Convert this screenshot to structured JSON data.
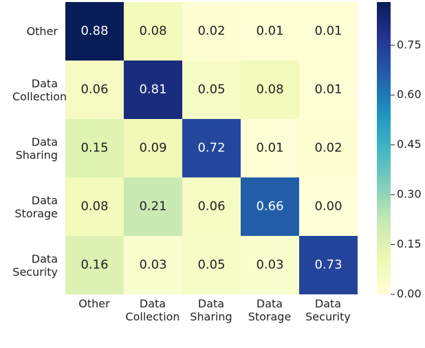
{
  "chart_data": {
    "type": "heatmap",
    "x_categories": [
      "Other",
      "Data Collection",
      "Data Sharing",
      "Data Storage",
      "Data Security"
    ],
    "y_categories": [
      "Other",
      "Data Collection",
      "Data Sharing",
      "Data Storage",
      "Data Security"
    ],
    "values": [
      [
        0.88,
        0.08,
        0.02,
        0.01,
        0.01
      ],
      [
        0.06,
        0.81,
        0.05,
        0.08,
        0.01
      ],
      [
        0.15,
        0.09,
        0.72,
        0.01,
        0.02
      ],
      [
        0.08,
        0.21,
        0.06,
        0.66,
        0.0
      ],
      [
        0.16,
        0.03,
        0.05,
        0.03,
        0.73
      ]
    ],
    "value_labels": [
      [
        "0.88",
        "0.08",
        "0.02",
        "0.01",
        "0.01"
      ],
      [
        "0.06",
        "0.81",
        "0.05",
        "0.08",
        "0.01"
      ],
      [
        "0.15",
        "0.09",
        "0.72",
        "0.01",
        "0.02"
      ],
      [
        "0.08",
        "0.21",
        "0.06",
        "0.66",
        "0.00"
      ],
      [
        "0.16",
        "0.03",
        "0.05",
        "0.03",
        "0.73"
      ]
    ],
    "colormap": [
      "#ffffd9",
      "#edf8b1",
      "#c7e9b4",
      "#7fcdbb",
      "#41b6c4",
      "#1d91c0",
      "#225ea8",
      "#253494",
      "#081d58"
    ],
    "clim": [
      0,
      0.88
    ],
    "cticks": [
      {
        "value": 0,
        "label": "0.00"
      },
      {
        "value": 0.15,
        "label": "0.15"
      },
      {
        "value": 0.3,
        "label": "0.30"
      },
      {
        "value": 0.45,
        "label": "0.45"
      },
      {
        "value": 0.6,
        "label": "0.60"
      },
      {
        "value": 0.75,
        "label": "0.75"
      }
    ]
  }
}
